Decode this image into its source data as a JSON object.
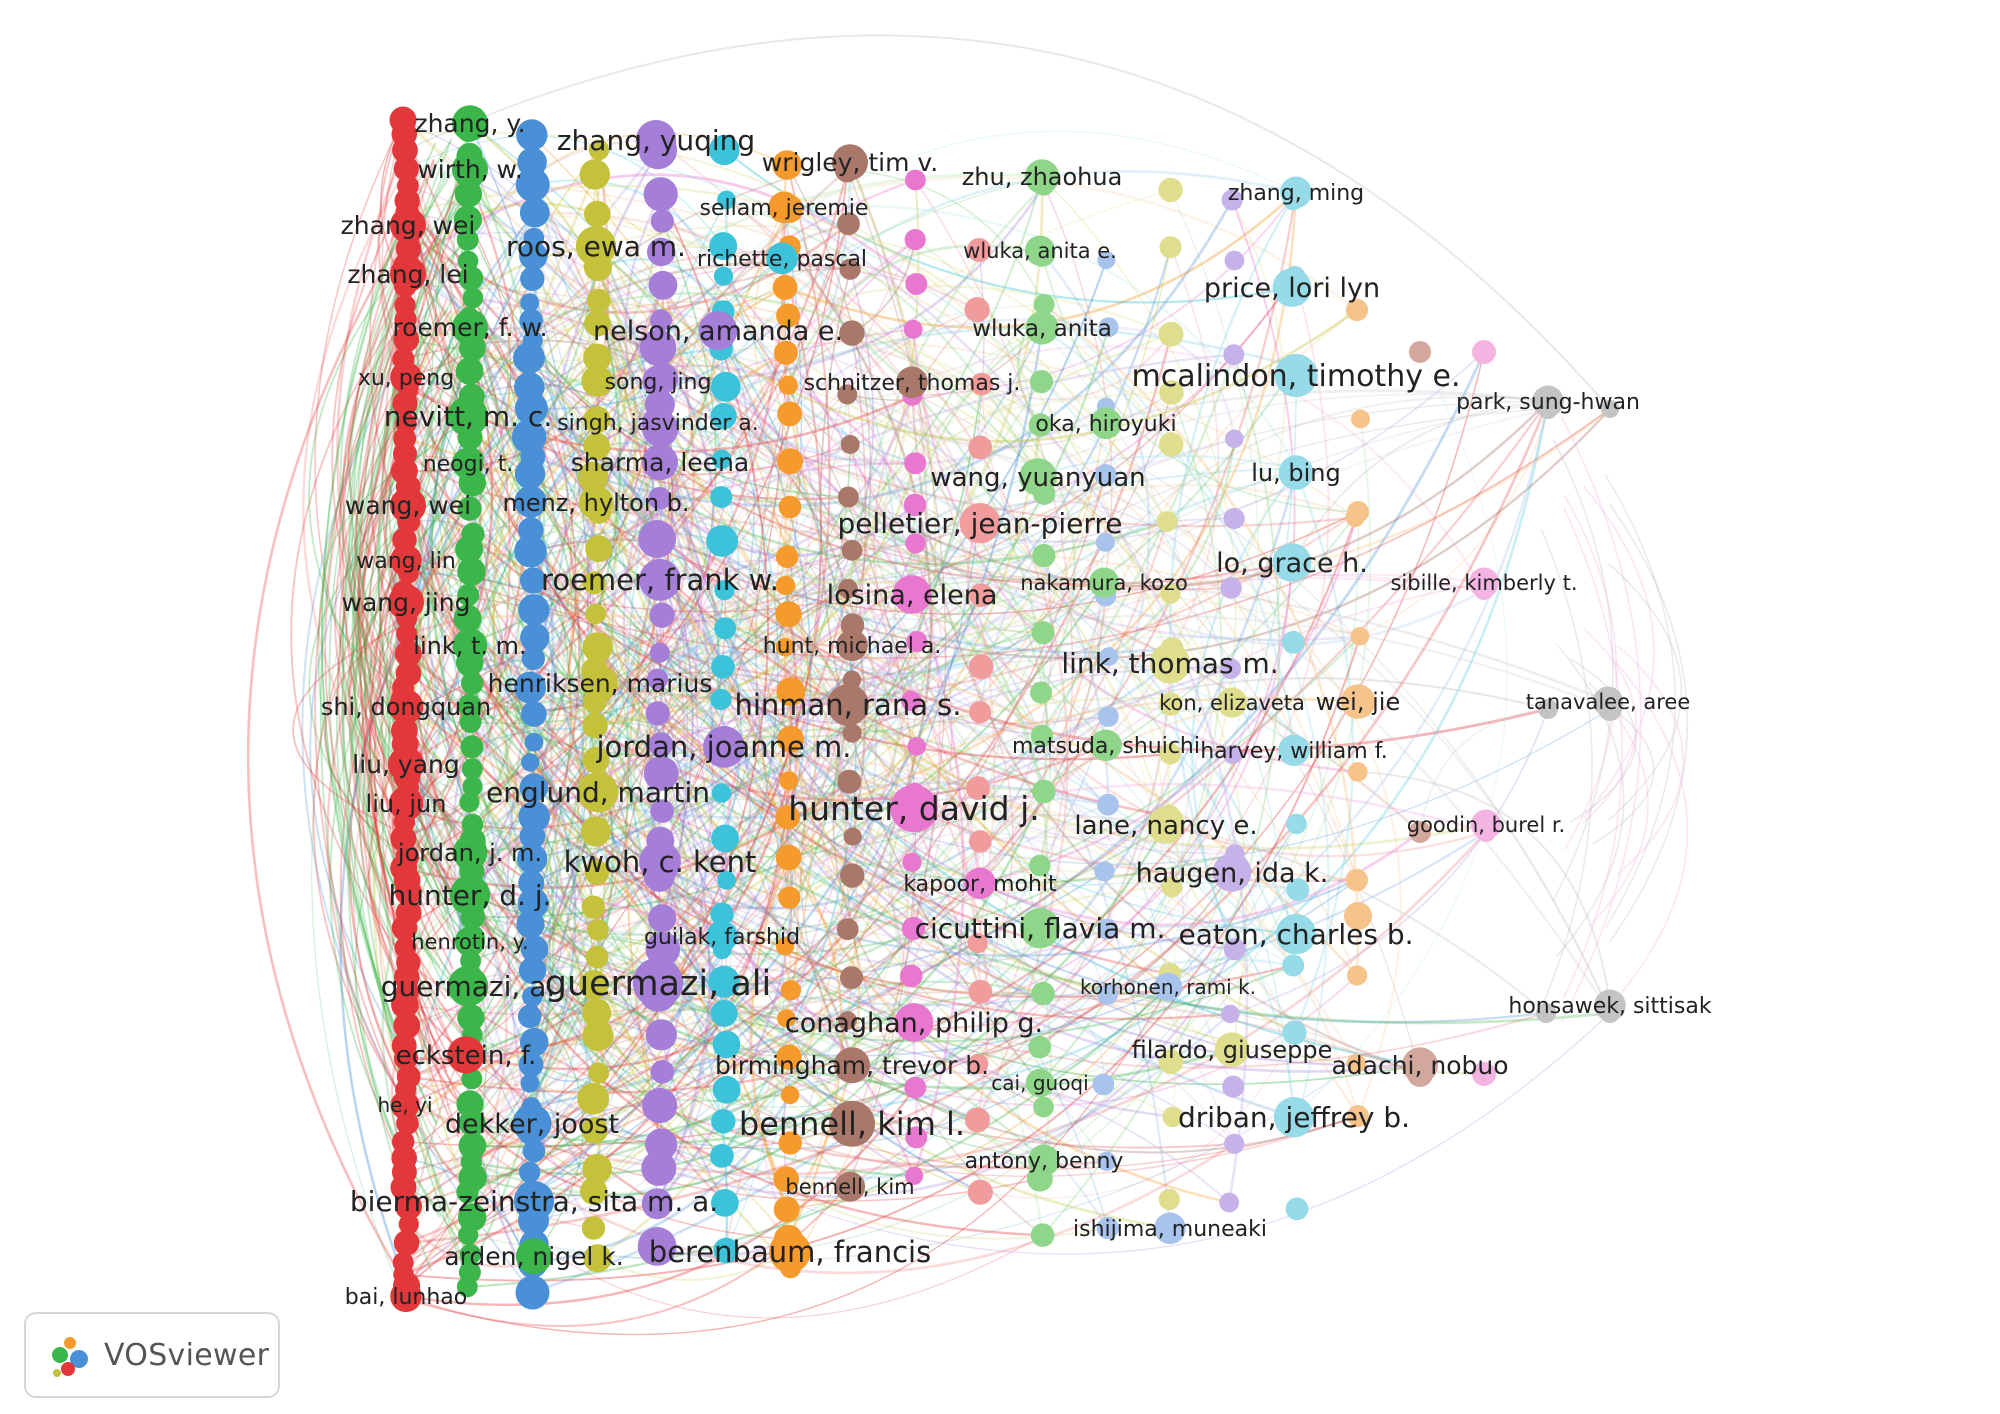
{
  "branding": {
    "app_name": "VOSviewer",
    "logo_icon": "vosviewer-logo-icon"
  },
  "clusters": {
    "red": "#e3383b",
    "green": "#3cb64a",
    "blue": "#4a90d6",
    "olive": "#c4c23a",
    "purple": "#a57ed8",
    "cyan": "#3cc3d9",
    "orange": "#f59a2c",
    "brown": "#a9786a",
    "pink": "#e878cf",
    "lightred": "#f19c9c",
    "lightgreen": "#8fd68a",
    "lightblue": "#a8c4ec",
    "lightyellow": "#dede8e",
    "lavender": "#c6b2e8",
    "lightcyan": "#97dbe8",
    "peach": "#f6c48a",
    "rosybrown": "#d3a89c",
    "lightpink": "#f4b4e2",
    "gray": "#c4c4c4"
  },
  "labels": [
    {
      "text": "zhang, y.",
      "c": "green"
    },
    {
      "text": "wirth, w.",
      "c": "green"
    },
    {
      "text": "zhang, wei",
      "c": "red"
    },
    {
      "text": "zhang, lei",
      "c": "red"
    },
    {
      "text": "roemer, f. w.",
      "c": "green"
    },
    {
      "text": "xu, peng",
      "c": "red"
    },
    {
      "text": "nevitt, m. c.",
      "c": "green"
    },
    {
      "text": "neogi, t.",
      "c": "green"
    },
    {
      "text": "wang, wei",
      "c": "red"
    },
    {
      "text": "wang, lin",
      "c": "red"
    },
    {
      "text": "wang, jing",
      "c": "red"
    },
    {
      "text": "link, t. m.",
      "c": "green"
    },
    {
      "text": "shi, dongquan",
      "c": "red"
    },
    {
      "text": "liu, yang",
      "c": "red"
    },
    {
      "text": "liu, jun",
      "c": "red"
    },
    {
      "text": "jordan, j. m.",
      "c": "green"
    },
    {
      "text": "hunter, d. j.",
      "c": "green"
    },
    {
      "text": "henrotin, y.",
      "c": "green"
    },
    {
      "text": "guermazi, a.",
      "c": "green"
    },
    {
      "text": "eckstein, f.",
      "c": "red"
    },
    {
      "text": "he, yi",
      "c": "red"
    },
    {
      "text": "dekker, joost",
      "c": "blue"
    },
    {
      "text": "bierma-zeinstra, sita m. a.",
      "c": "blue"
    },
    {
      "text": "arden, nigel k.",
      "c": "green"
    },
    {
      "text": "bai, lunhao",
      "c": "red"
    },
    {
      "text": "roos, ewa m.",
      "c": "olive"
    },
    {
      "text": "menz, hylton b.",
      "c": "olive"
    },
    {
      "text": "henriksen, marius",
      "c": "olive"
    },
    {
      "text": "englund, martin",
      "c": "olive"
    },
    {
      "text": "zhang, yuqing",
      "c": "purple"
    },
    {
      "text": "nelson, amanda e.",
      "c": "purple"
    },
    {
      "text": "song, jing",
      "c": "purple"
    },
    {
      "text": "singh, jasvinder a.",
      "c": "purple"
    },
    {
      "text": "sharma, leena",
      "c": "purple"
    },
    {
      "text": "roemer, frank w.",
      "c": "purple"
    },
    {
      "text": "jordan, joanne m.",
      "c": "purple"
    },
    {
      "text": "kwoh, c. kent",
      "c": "purple"
    },
    {
      "text": "guermazi, ali",
      "c": "purple"
    },
    {
      "text": "guilak, farshid",
      "c": "cyan"
    },
    {
      "text": "sellam, jeremie",
      "c": "orange"
    },
    {
      "text": "richette, pascal",
      "c": "cyan"
    },
    {
      "text": "berenbaum, francis",
      "c": "orange"
    },
    {
      "text": "wrigley, tim v.",
      "c": "brown"
    },
    {
      "text": "schnitzer, thomas j.",
      "c": "brown"
    },
    {
      "text": "hunt, michael a.",
      "c": "brown"
    },
    {
      "text": "hinman, rana s.",
      "c": "brown"
    },
    {
      "text": "birmingham, trevor b.",
      "c": "brown"
    },
    {
      "text": "bennell, kim l.",
      "c": "brown"
    },
    {
      "text": "bennell, kim",
      "c": "brown"
    },
    {
      "text": "losina, elena",
      "c": "pink"
    },
    {
      "text": "hunter, david j.",
      "c": "pink"
    },
    {
      "text": "kapoor, mohit",
      "c": "pink"
    },
    {
      "text": "conaghan, philip g.",
      "c": "pink"
    },
    {
      "text": "pelletier, jean-pierre",
      "c": "lightred"
    },
    {
      "text": "zhu, zhaohua",
      "c": "lightgreen"
    },
    {
      "text": "wluka, anita e.",
      "c": "lightgreen"
    },
    {
      "text": "wluka, anita",
      "c": "lightgreen"
    },
    {
      "text": "oka, hiroyuki",
      "c": "lightgreen"
    },
    {
      "text": "wang, yuanyuan",
      "c": "lightgreen"
    },
    {
      "text": "nakamura, kozo",
      "c": "lightgreen"
    },
    {
      "text": "matsuda, shuichi",
      "c": "lightgreen"
    },
    {
      "text": "cicuttini, flavia m.",
      "c": "lightgreen"
    },
    {
      "text": "cai, guoqi",
      "c": "lightgreen"
    },
    {
      "text": "antony, benny",
      "c": "lightgreen"
    },
    {
      "text": "korhonen, rami k.",
      "c": "lightblue"
    },
    {
      "text": "ishijima, muneaki",
      "c": "lightblue"
    },
    {
      "text": "link, thomas m.",
      "c": "lightyellow"
    },
    {
      "text": "kon, elizaveta",
      "c": "lightyellow"
    },
    {
      "text": "lane, nancy e.",
      "c": "lightyellow"
    },
    {
      "text": "filardo, giuseppe",
      "c": "lightyellow"
    },
    {
      "text": "zhang, ming",
      "c": "lightcyan"
    },
    {
      "text": "price, lori lyn",
      "c": "lightcyan"
    },
    {
      "text": "mcalindon, timothy e.",
      "c": "lightcyan"
    },
    {
      "text": "lu, bing",
      "c": "lightcyan"
    },
    {
      "text": "lo, grace h.",
      "c": "lightcyan"
    },
    {
      "text": "harvey, william f.",
      "c": "lightcyan"
    },
    {
      "text": "haugen, ida k.",
      "c": "lavender"
    },
    {
      "text": "eaton, charles b.",
      "c": "lightcyan"
    },
    {
      "text": "driban, jeffrey b.",
      "c": "lightcyan"
    },
    {
      "text": "wei, jie",
      "c": "peach"
    },
    {
      "text": "adachi, nobuo",
      "c": "rosybrown"
    },
    {
      "text": "park, sung-hwan",
      "c": "gray"
    },
    {
      "text": "sibille, kimberly t.",
      "c": "lightpink"
    },
    {
      "text": "tanavalee, aree",
      "c": "gray"
    },
    {
      "text": "goodin, burel r.",
      "c": "lightpink"
    },
    {
      "text": "honsawek, sittisak",
      "c": "gray"
    }
  ]
}
